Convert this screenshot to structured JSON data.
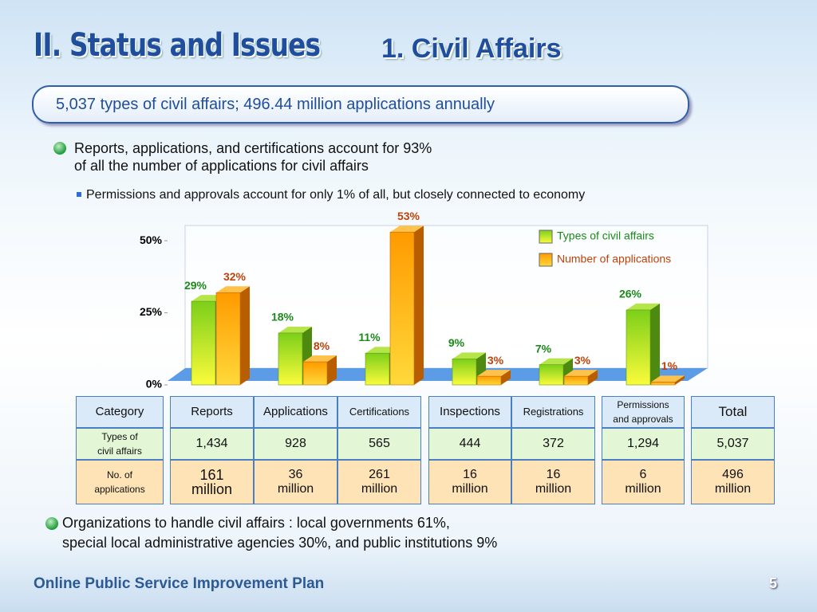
{
  "header": {
    "section": "II. Status and Issues",
    "title": "1. Civil Affairs"
  },
  "banner": "5,037 types of civil affairs; 496.44 million applications annually",
  "bullets": [
    "Reports, applications, and certifications account for 93%\nof all the number of applications for civil affairs",
    "Organizations to handle civil affairs : local governments 61%,\n special local administrative agencies 30%, and public institutions 9%"
  ],
  "sub_bullet": "Permissions and approvals account for only 1% of all, but closely connected to economy",
  "chart_data": {
    "type": "bar",
    "categories": [
      null,
      null,
      null,
      null,
      null,
      null
    ],
    "series": [
      {
        "name": "Types of civil affairs",
        "color": "#8fd11f",
        "values": [
          29,
          18,
          11,
          9,
          7,
          26
        ],
        "value_labels": [
          "29%",
          "18%",
          "11%",
          "9%",
          "7%",
          "26%"
        ],
        "label_color": "#1a8a1a"
      },
      {
        "name": "Number of applications",
        "color": "#ff9f00",
        "values": [
          32,
          8,
          53,
          3,
          3,
          1
        ],
        "value_labels": [
          "32%",
          "8%",
          "53%",
          "3%",
          "3%",
          "1%"
        ],
        "label_color": "#c0420a"
      }
    ],
    "ylim": [
      0,
      55
    ],
    "yticks": [
      {
        "value": 0,
        "label": "0%"
      },
      {
        "value": 25,
        "label": "25%"
      },
      {
        "value": 50,
        "label": "50%"
      }
    ],
    "legend": "top-right"
  },
  "table": {
    "header": [
      "Category",
      "Reports",
      "Applications",
      "Certifications",
      "Inspections",
      "Registrations",
      "Permissions\nand approvals",
      "Total"
    ],
    "rows": [
      [
        "Types of\ncivil affairs",
        "1,434",
        "928",
        "565",
        "444",
        "372",
        "1,294",
        "5,037"
      ],
      [
        "No. of\napplications",
        "161\nmillion",
        "36\nmillion",
        "261\nmillion",
        "16\nmillion",
        "16\nmillion",
        "6\nmillion",
        "496\nmillion"
      ]
    ]
  },
  "footer": {
    "text": "Online Public Service Improvement Plan",
    "page": "5"
  }
}
